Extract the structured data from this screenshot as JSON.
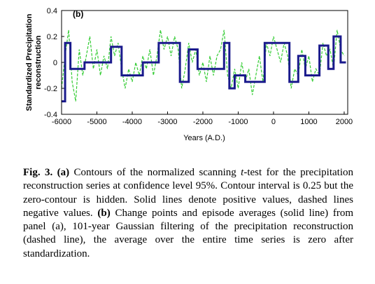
{
  "chart_data": {
    "type": "line",
    "panel_label": "(b)",
    "ylabel": [
      "Standardized Precipitation",
      "reconstruction"
    ],
    "xlabel": "Years (A.D.)",
    "xlim": [
      -6000,
      2100
    ],
    "ylim": [
      -0.4,
      0.4
    ],
    "xticks": [
      -6000,
      -5000,
      -4000,
      -3000,
      -2000,
      -1000,
      0,
      1000,
      2000
    ],
    "yticks": [
      0.4,
      0.2,
      0,
      -0.2,
      -0.4
    ],
    "series": [
      {
        "color": "#33cc33",
        "dashed": true,
        "step": false,
        "x": [
          -6000,
          -5900,
          -5800,
          -5700,
          -5600,
          -5500,
          -5400,
          -5300,
          -5200,
          -5100,
          -5000,
          -4900,
          -4800,
          -4700,
          -4600,
          -4500,
          -4400,
          -4300,
          -4200,
          -4100,
          -4000,
          -3900,
          -3800,
          -3700,
          -3600,
          -3500,
          -3400,
          -3300,
          -3200,
          -3100,
          -3000,
          -2900,
          -2800,
          -2700,
          -2600,
          -2500,
          -2400,
          -2300,
          -2200,
          -2100,
          -2000,
          -1900,
          -1800,
          -1700,
          -1600,
          -1500,
          -1400,
          -1300,
          -1200,
          -1100,
          -1000,
          -900,
          -800,
          -700,
          -600,
          -500,
          -400,
          -300,
          -200,
          -100,
          0,
          100,
          200,
          300,
          400,
          500,
          600,
          700,
          800,
          900,
          1000,
          1100,
          1200,
          1300,
          1400,
          1500,
          1600,
          1700,
          1800,
          1900,
          2000
        ],
        "values": [
          -0.2,
          0.05,
          0.25,
          -0.15,
          -0.3,
          0.1,
          -0.1,
          0.05,
          0.2,
          -0.05,
          0.1,
          -0.1,
          0.05,
          -0.05,
          0.2,
          0.05,
          0.15,
          -0.05,
          -0.2,
          -0.05,
          -0.15,
          0,
          -0.1,
          0.05,
          -0.05,
          0.1,
          -0.1,
          0.05,
          0.25,
          0.1,
          0.2,
          0.05,
          0.2,
          0.1,
          -0.2,
          -0.05,
          0.15,
          0,
          0.1,
          -0.1,
          0,
          -0.15,
          0.05,
          -0.1,
          0.05,
          0.1,
          0.25,
          -0.1,
          -0.2,
          -0.05,
          -0.2,
          0,
          -0.15,
          -0.05,
          -0.25,
          -0.1,
          0.05,
          -0.15,
          0.15,
          0.05,
          0.2,
          0.1,
          0,
          0.15,
          0.05,
          -0.2,
          -0.05,
          -0.1,
          0.1,
          -0.05,
          0.05,
          -0.15,
          -0.05,
          -0.1,
          0.15,
          0.05,
          0.1,
          -0.05,
          0.25,
          0.1,
          0.05
        ]
      },
      {
        "color": "#1a1a8c",
        "dashed": false,
        "step": true,
        "x": [
          -6000,
          -5900,
          -5750,
          -5350,
          -4600,
          -4300,
          -3700,
          -3250,
          -2650,
          -2400,
          -2150,
          -1870,
          -1400,
          -1250,
          -1100,
          -800,
          -250,
          450,
          700,
          900,
          1300,
          1550,
          1700,
          1900,
          2050
        ],
        "values": [
          -0.3,
          0.15,
          -0.05,
          0,
          0.12,
          -0.1,
          0,
          0.15,
          -0.15,
          0.1,
          -0.05,
          -0.05,
          0.15,
          -0.2,
          -0.1,
          -0.15,
          0.15,
          -0.15,
          0.05,
          -0.1,
          0.13,
          -0.05,
          0.2,
          0,
          0
        ]
      }
    ]
  },
  "caption": {
    "fig": "Fig. 3.",
    "a": "(a)",
    "t1": " Contours of the normalized scanning ",
    "t": "t",
    "t2": "-test for the precipitation reconstruction series at confidence level 95%.  Contour interval is 0.25 but the zero-contour is hidden.  Solid lines denote positive values, dashed lines negative values. ",
    "b": "(b)",
    "t3": " Change points and episode averages (solid line) from panel (a), 101-year Gaussian filtering of the precipitation reconstruction (dashed line), the average over the entire time series is zero after standardization."
  }
}
